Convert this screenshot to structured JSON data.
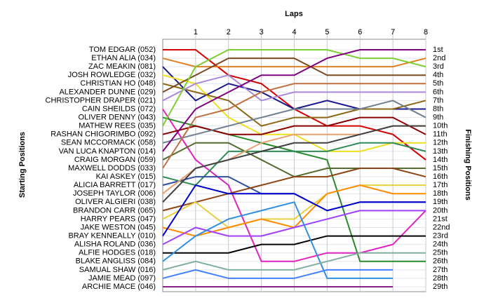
{
  "chart_data": {
    "type": "line",
    "x_label": "Laps",
    "y_label": "Starting Positions",
    "y2_label": "Finishing Positions",
    "x": [
      0,
      1,
      2,
      3,
      4,
      5,
      6,
      7,
      8
    ],
    "xlim": [
      0,
      8
    ],
    "xticks": [
      1,
      2,
      3,
      4,
      5,
      6,
      7,
      8
    ],
    "ylim": [
      1,
      29
    ],
    "y_inverted": true,
    "grid": true,
    "yticks": [
      {
        "value": 1,
        "label": "1st"
      },
      {
        "value": 2,
        "label": "2nd"
      },
      {
        "value": 3,
        "label": "3rd"
      },
      {
        "value": 4,
        "label": "4th"
      },
      {
        "value": 5,
        "label": "5th"
      },
      {
        "value": 6,
        "label": "6th"
      },
      {
        "value": 7,
        "label": "7th"
      },
      {
        "value": 8,
        "label": "8th"
      },
      {
        "value": 9,
        "label": "9th"
      },
      {
        "value": 10,
        "label": "10th"
      },
      {
        "value": 11,
        "label": "11th"
      },
      {
        "value": 12,
        "label": "12th"
      },
      {
        "value": 13,
        "label": "13th"
      },
      {
        "value": 14,
        "label": "14th"
      },
      {
        "value": 15,
        "label": "15th"
      },
      {
        "value": 16,
        "label": "16th"
      },
      {
        "value": 17,
        "label": "17th"
      },
      {
        "value": 18,
        "label": "18th"
      },
      {
        "value": 19,
        "label": "19th"
      },
      {
        "value": 20,
        "label": "20th"
      },
      {
        "value": 21,
        "label": "21st"
      },
      {
        "value": 22,
        "label": "22nd"
      },
      {
        "value": 23,
        "label": "23rd"
      },
      {
        "value": 24,
        "label": "24th"
      },
      {
        "value": 25,
        "label": "25th"
      },
      {
        "value": 26,
        "label": "26th"
      },
      {
        "value": 27,
        "label": "27th"
      },
      {
        "value": 28,
        "label": "28th"
      },
      {
        "value": 29,
        "label": "29th"
      }
    ],
    "series": [
      {
        "name": "TOM EDGAR (052)",
        "color": "#d40000",
        "values": [
          1,
          1,
          4,
          5,
          8,
          10,
          10,
          11,
          14
        ]
      },
      {
        "name": "ETHAN ALIA (034)",
        "color": "#e08020",
        "values": [
          2,
          3,
          3,
          3,
          3,
          3,
          3,
          3,
          2
        ]
      },
      {
        "name": "ZAC MEAKIN (081)",
        "color": "#1a1a8c",
        "values": [
          3,
          7,
          5,
          6,
          8,
          7,
          8,
          8,
          8
        ]
      },
      {
        "name": "JOSH ROWLEDGE (032)",
        "color": "#f0e020",
        "values": [
          4,
          5,
          9,
          11,
          11,
          13,
          13,
          12,
          12
        ]
      },
      {
        "name": "CHRISTIAN HO (048)",
        "color": "#8b6914",
        "values": [
          5,
          6,
          7,
          10,
          9,
          9,
          8,
          8,
          7
        ]
      },
      {
        "name": "ALEXANDER DUNNE (029)",
        "color": "#7a4a20",
        "values": [
          6,
          4,
          2,
          2,
          2,
          4,
          4,
          4,
          4
        ]
      },
      {
        "name": "CHRISTOPHER DRAPER (021)",
        "color": "#aa88dd",
        "values": [
          7,
          5,
          4,
          7,
          6,
          6,
          6,
          6,
          6
        ]
      },
      {
        "name": "CAIN SHEILDS (072)",
        "color": "#e020c0",
        "values": [
          8,
          14,
          17,
          26,
          26,
          25,
          25,
          24,
          20
        ]
      },
      {
        "name": "OLIVER DENNY (043)",
        "color": "#2a8a2a",
        "values": [
          9,
          10,
          11,
          12,
          13,
          14,
          26,
          26,
          26
        ]
      },
      {
        "name": "MATHEW REES (035)",
        "color": "#7dcf30",
        "values": [
          10,
          3,
          1,
          1,
          1,
          1,
          2,
          2,
          3
        ]
      },
      {
        "name": "RASHAN CHIGORIMBO (092)",
        "color": "#8b0000",
        "values": [
          11,
          10,
          11,
          11,
          10,
          10,
          9,
          9,
          11
        ]
      },
      {
        "name": "SEAN MCCORMACK (058)",
        "color": "#708090",
        "values": [
          12,
          11,
          10,
          9,
          8,
          8,
          8,
          7,
          9
        ]
      },
      {
        "name": "VAN LUCA KNAPTON (014)",
        "color": "#800080",
        "values": [
          13,
          8,
          6,
          4,
          4,
          2,
          1,
          1,
          1
        ]
      },
      {
        "name": "CRAIG MORGAN (059)",
        "color": "#556b2f",
        "values": [
          14,
          12,
          12,
          14,
          16,
          15,
          15,
          15,
          15
        ]
      },
      {
        "name": "MAXWELL DODDS (033)",
        "color": "#c07040",
        "values": [
          15,
          9,
          8,
          6,
          5,
          5,
          5,
          5,
          5
        ]
      },
      {
        "name": "KAI ASKEY (015)",
        "color": "#2e8b57",
        "values": [
          16,
          17,
          13,
          13,
          13,
          13,
          12,
          12,
          13
        ]
      },
      {
        "name": "ALICIA BARRETT (017)",
        "color": "#3050a0",
        "values": [
          17,
          16,
          16,
          18,
          18,
          20,
          19,
          19,
          19
        ]
      },
      {
        "name": "JOSEPH TAYLOR (006)",
        "color": "#e8a070",
        "values": [
          18,
          15,
          14,
          12,
          11,
          11,
          11,
          10,
          10
        ]
      },
      {
        "name": "OLIVER ALGIERI (038)",
        "color": "#404040",
        "values": [
          19,
          15,
          14,
          13,
          12,
          12,
          11,
          10,
          10
        ]
      },
      {
        "name": "BRANDON CARR (065)",
        "color": "#8b4513",
        "values": [
          20,
          19,
          18,
          17,
          16,
          16,
          15,
          15,
          16
        ]
      },
      {
        "name": "HARRY PEARS (047)",
        "color": "#e8d040",
        "values": [
          21,
          19,
          22,
          21,
          21,
          18,
          17,
          17,
          17
        ]
      },
      {
        "name": "JAKE WESTON (045)",
        "color": "#ff8c00",
        "values": [
          22,
          23,
          22,
          21,
          22,
          18,
          17,
          18,
          18
        ]
      },
      {
        "name": "BRAY KENNEALLY (010)",
        "color": "#0000cc",
        "values": [
          23,
          17,
          18,
          18,
          18,
          20,
          19,
          19,
          19
        ]
      },
      {
        "name": "ALISHA ROLAND (036)",
        "color": "#a040ff",
        "values": [
          24,
          22,
          23,
          23,
          22,
          21,
          20,
          20,
          20
        ]
      },
      {
        "name": "ALFIE HODGES (018)",
        "color": "#000000",
        "values": [
          25,
          25,
          25,
          24,
          24,
          23,
          23,
          23,
          23
        ]
      },
      {
        "name": "BLAKE ANGLISS (084)",
        "color": "#3090e0",
        "values": [
          26,
          23,
          21,
          20,
          19,
          28,
          28,
          28,
          null
        ]
      },
      {
        "name": "SAMUAL SHAW (016)",
        "color": "#80b0a0",
        "values": [
          27,
          26,
          27,
          27,
          27,
          26,
          25,
          25,
          25
        ]
      },
      {
        "name": "JAMIE MEAD (097)",
        "color": "#4080ff",
        "values": [
          28,
          27,
          28,
          28,
          28,
          27,
          27,
          27,
          null
        ]
      },
      {
        "name": "ARCHIE MACE (046)",
        "color": "#8b228b",
        "values": [
          29,
          29,
          29,
          29,
          29,
          29,
          29,
          29,
          null
        ]
      }
    ]
  }
}
